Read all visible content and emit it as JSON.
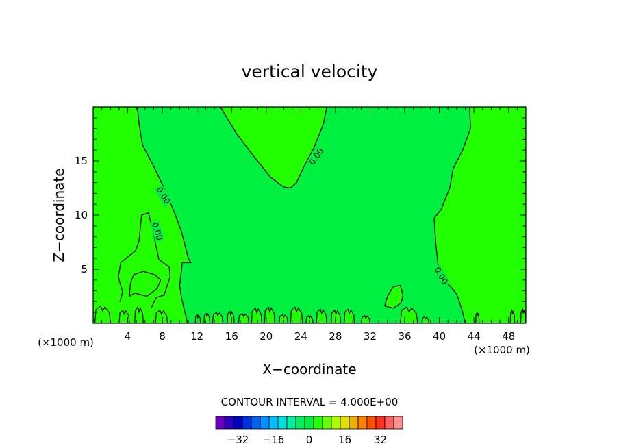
{
  "chart_data": {
    "type": "contour",
    "title": "vertical velocity",
    "xlabel": "X−coordinate",
    "ylabel": "Z−coordinate",
    "x_unit": "(×1000 m)",
    "y_unit": "(×1000 m)",
    "xlim": [
      0,
      50
    ],
    "ylim": [
      0,
      20
    ],
    "x_ticks": [
      4,
      8,
      12,
      16,
      20,
      24,
      28,
      32,
      36,
      40,
      44,
      48
    ],
    "x_tick_labels": [
      "4",
      "8",
      "12",
      "16",
      "20",
      "24",
      "28",
      "32",
      "36",
      "40",
      "44",
      "48"
    ],
    "y_ticks": [
      5,
      10,
      15
    ],
    "y_tick_labels": [
      "5",
      "10",
      "15"
    ],
    "contour_interval_text": "CONTOUR INTERVAL = 4.000E+00",
    "contour_label": "0.00",
    "background_fill": "#00f040",
    "colors": {
      "field_zero": "#00f040",
      "field_positive": "#22ff00",
      "contour_line": "#000000"
    },
    "regions": [
      {
        "level": "positive",
        "points": [
          [
            0,
            20
          ],
          [
            5.1,
            20
          ],
          [
            5.3,
            18.5
          ],
          [
            5.7,
            16.5
          ],
          [
            7,
            14.5
          ],
          [
            8.5,
            12
          ],
          [
            9.5,
            10
          ],
          [
            10.2,
            8.5
          ],
          [
            11,
            6
          ],
          [
            11.3,
            5.6
          ],
          [
            10.3,
            5.6
          ],
          [
            10,
            3.5
          ],
          [
            10.2,
            2.4
          ],
          [
            10.9,
            0
          ],
          [
            0,
            0
          ]
        ]
      },
      {
        "level": "positive",
        "points": [
          [
            14.7,
            20
          ],
          [
            16.6,
            17.5
          ],
          [
            18.5,
            15.5
          ],
          [
            20.5,
            13.5
          ],
          [
            22,
            12.6
          ],
          [
            22.8,
            12.5
          ],
          [
            23.5,
            13
          ],
          [
            24.3,
            14.4
          ],
          [
            25.5,
            16.2
          ],
          [
            26.6,
            18.4
          ],
          [
            27,
            20
          ]
        ]
      },
      {
        "level": "positive",
        "points": [
          [
            43.5,
            20
          ],
          [
            43.6,
            18
          ],
          [
            42.7,
            16
          ],
          [
            41.6,
            14.3
          ],
          [
            41.2,
            12.5
          ],
          [
            40.2,
            10.5
          ],
          [
            39.4,
            9.7
          ],
          [
            39.6,
            7.3
          ],
          [
            39.9,
            5.1
          ],
          [
            40.6,
            4
          ],
          [
            41.4,
            3.3
          ],
          [
            42,
            2.7
          ],
          [
            42.6,
            1.3
          ],
          [
            43,
            0
          ],
          [
            50,
            0
          ],
          [
            50,
            20
          ]
        ]
      },
      {
        "level": "positive",
        "points": [
          [
            33.7,
            1.6
          ],
          [
            34,
            2.5
          ],
          [
            34.7,
            3.4
          ],
          [
            35.5,
            3.5
          ],
          [
            35.8,
            2.6
          ],
          [
            35.6,
            1.9
          ],
          [
            34.7,
            1.4
          ]
        ]
      }
    ],
    "contours": [
      {
        "level": 0,
        "points": [
          [
            6.7,
            1.4
          ],
          [
            7.3,
            2.4
          ],
          [
            8.2,
            2.6
          ],
          [
            8.9,
            4.3
          ],
          [
            8.8,
            5.2
          ],
          [
            7.6,
            5.9
          ],
          [
            6.9,
            8.5
          ],
          [
            6.4,
            10.2
          ],
          [
            5.6,
            10
          ],
          [
            5.3,
            7.6
          ],
          [
            4.9,
            6.7
          ],
          [
            4.1,
            6.2
          ],
          [
            3.2,
            5.6
          ],
          [
            2.9,
            4.3
          ],
          [
            3.4,
            2.9
          ],
          [
            3.1,
            2
          ]
        ]
      },
      {
        "level": 0,
        "points": [
          [
            4.2,
            2.5
          ],
          [
            4.8,
            2.8
          ],
          [
            6.2,
            2.5
          ],
          [
            7.4,
            3.2
          ],
          [
            7.8,
            4
          ],
          [
            7.1,
            4.5
          ],
          [
            5.8,
            4.8
          ],
          [
            4.7,
            4.5
          ],
          [
            4.3,
            3.7
          ],
          [
            4.2,
            2.5
          ]
        ]
      }
    ],
    "contour_labels": [
      {
        "x": 8.1,
        "y": 11.8,
        "angle": 58,
        "text": "0.00"
      },
      {
        "x": 7.4,
        "y": 8.5,
        "angle": 73,
        "text": "0.00"
      },
      {
        "x": 25.8,
        "y": 15.4,
        "angle": -55,
        "text": "0.00"
      },
      {
        "x": 40.2,
        "y": 4.4,
        "angle": 60,
        "text": "0.00"
      }
    ],
    "ground_bumps": [
      {
        "x": [
          0.2,
          2.0
        ],
        "peak": 1.6
      },
      {
        "x": [
          3.0,
          4.2
        ],
        "peak": 1.2
      },
      {
        "x": [
          4.8,
          5.8
        ],
        "peak": 1.5
      },
      {
        "x": [
          7.2,
          8.6
        ],
        "peak": 1.2
      },
      {
        "x": [
          11.8,
          12.4
        ],
        "peak": 0.8
      },
      {
        "x": [
          12.8,
          13.5
        ],
        "peak": 0.9
      },
      {
        "x": [
          13.8,
          15.0
        ],
        "peak": 1.0
      },
      {
        "x": [
          15.5,
          16.3
        ],
        "peak": 1.1
      },
      {
        "x": [
          16.8,
          18.0
        ],
        "peak": 0.9
      },
      {
        "x": [
          18.3,
          19.5
        ],
        "peak": 1.4
      },
      {
        "x": [
          19.8,
          21.0
        ],
        "peak": 1.5
      },
      {
        "x": [
          21.5,
          22.5
        ],
        "peak": 0.8
      },
      {
        "x": [
          22.8,
          24.2
        ],
        "peak": 1.5
      },
      {
        "x": [
          24.6,
          25.4
        ],
        "peak": 0.7
      },
      {
        "x": [
          25.8,
          27.0
        ],
        "peak": 1.3
      },
      {
        "x": [
          27.5,
          28.6
        ],
        "peak": 1.2
      },
      {
        "x": [
          29.0,
          30.2
        ],
        "peak": 1.3
      },
      {
        "x": [
          31.0,
          32.0
        ],
        "peak": 0.7
      },
      {
        "x": [
          35.5,
          37.5
        ],
        "peak": 1.5
      },
      {
        "x": [
          38.0,
          38.8
        ],
        "peak": 0.6
      },
      {
        "x": [
          44.2,
          44.6
        ],
        "peak": 1.0
      },
      {
        "x": [
          48.2,
          48.7
        ],
        "peak": 1.2
      },
      {
        "x": [
          49.4,
          50.0
        ],
        "peak": 1.3
      }
    ],
    "colorbar": {
      "colors": [
        "#7000c0",
        "#3000c0",
        "#0000c0",
        "#0030e0",
        "#0060f0",
        "#0090ff",
        "#00c0ff",
        "#00e0e0",
        "#00f0a0",
        "#00f060",
        "#00f040",
        "#22ff00",
        "#66ff00",
        "#aaff00",
        "#e0e000",
        "#f0b000",
        "#ff8000",
        "#ff5000",
        "#ff3020",
        "#ff6060",
        "#ff9090"
      ],
      "tick_values": [
        -32,
        -16,
        0,
        16,
        32
      ],
      "tick_labels": [
        "−32",
        "−16",
        "0",
        "16",
        "32"
      ],
      "vmin": -42,
      "vmax": 42
    }
  }
}
